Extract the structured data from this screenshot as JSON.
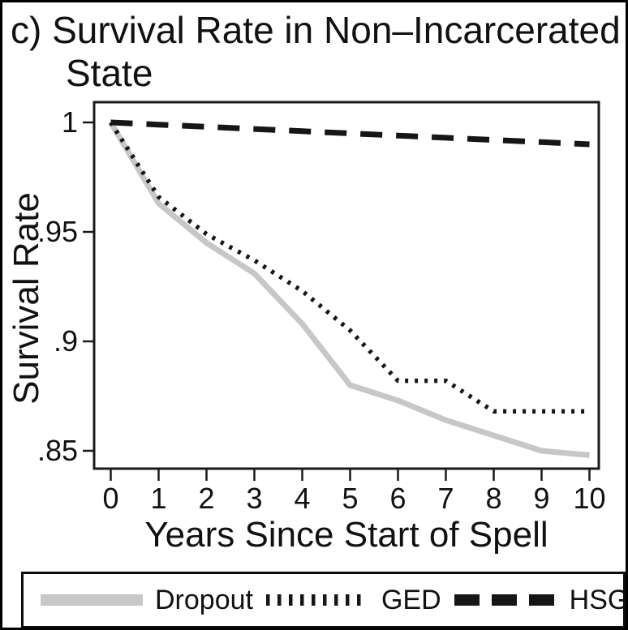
{
  "figure": {
    "title_line1": "c) Survival Rate in Non–Incarcerated",
    "title_line2": "State"
  },
  "chart_data": {
    "type": "line",
    "title": "c) Survival Rate in Non–Incarcerated State",
    "xlabel": "Years Since Start of Spell",
    "ylabel": "Survival Rate",
    "x": [
      0,
      1,
      2,
      3,
      4,
      5,
      6,
      7,
      8,
      9,
      10
    ],
    "x_tick_labels": [
      "0",
      "1",
      "2",
      "3",
      "4",
      "5",
      "6",
      "7",
      "8",
      "9",
      "10"
    ],
    "y_ticks": [
      1,
      0.95,
      0.9,
      0.85
    ],
    "y_tick_labels": [
      "1",
      ".95",
      ".9",
      ".85"
    ],
    "xlim": [
      -0.35,
      10.2
    ],
    "ylim": [
      0.842,
      1.009
    ],
    "grid": false,
    "legend_position": "bottom",
    "series": [
      {
        "name": "Dropout",
        "style": "solid",
        "color": "#c7c7c7",
        "values": [
          1.0,
          0.963,
          0.945,
          0.931,
          0.908,
          0.88,
          0.873,
          0.864,
          0.857,
          0.85,
          0.848
        ]
      },
      {
        "name": "GED",
        "style": "dotted",
        "color": "#161616",
        "values": [
          1.0,
          0.966,
          0.949,
          0.937,
          0.923,
          0.905,
          0.882,
          0.882,
          0.868,
          0.868,
          0.868
        ]
      },
      {
        "name": "HSG",
        "style": "dashed",
        "color": "#161616",
        "values": [
          1.0,
          0.999,
          0.998,
          0.997,
          0.996,
          0.995,
          0.994,
          0.993,
          0.992,
          0.991,
          0.99
        ]
      }
    ]
  },
  "colors": {
    "axis": "#1a1a1a",
    "text": "#111111",
    "dropout_gray": "#c7c7c7",
    "line_black": "#161616"
  }
}
